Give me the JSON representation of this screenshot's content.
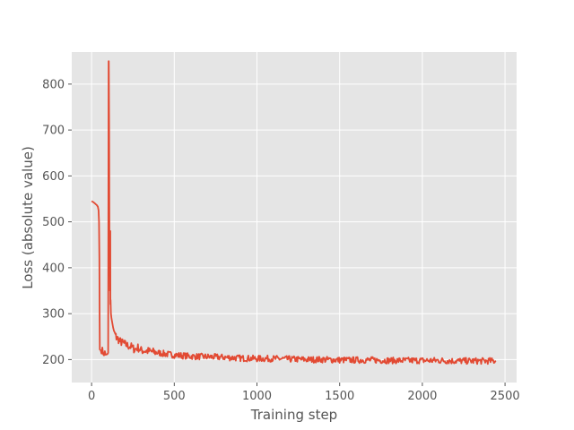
{
  "chart_data": {
    "type": "line",
    "title": "",
    "xlabel": "Training step",
    "ylabel": "Loss (absolute value)",
    "xlim": [
      -120,
      2570
    ],
    "ylim": [
      150,
      870
    ],
    "grid": true,
    "background": "#e5e5e5",
    "grid_color": "#ffffff",
    "line_color": "#e24a33",
    "x_ticks": [
      0,
      500,
      1000,
      1500,
      2000,
      2500
    ],
    "y_ticks": [
      200,
      300,
      400,
      500,
      600,
      700,
      800
    ],
    "series": [
      {
        "points": [
          [
            0,
            545
          ],
          [
            10,
            543
          ],
          [
            20,
            540
          ],
          [
            30,
            537
          ],
          [
            38,
            533
          ],
          [
            42,
            525
          ],
          [
            45,
            500
          ],
          [
            47,
            420
          ],
          [
            48,
            320
          ],
          [
            49,
            250
          ],
          [
            50,
            222
          ],
          [
            55,
            220
          ],
          [
            60,
            218
          ],
          [
            65,
            222
          ],
          [
            70,
            214
          ],
          [
            75,
            212
          ],
          [
            80,
            216
          ],
          [
            85,
            210
          ],
          [
            90,
            213
          ],
          [
            95,
            209
          ],
          [
            100,
            212
          ],
          [
            102,
            600
          ],
          [
            103,
            850
          ],
          [
            104,
            850
          ],
          [
            106,
            700
          ],
          [
            108,
            480
          ],
          [
            109,
            440
          ],
          [
            110,
            470
          ],
          [
            111,
            350
          ],
          [
            112,
            420
          ],
          [
            113,
            480
          ],
          [
            114,
            320
          ],
          [
            115,
            330
          ],
          [
            117,
            300
          ],
          [
            120,
            290
          ],
          [
            125,
            280
          ],
          [
            130,
            270
          ],
          [
            135,
            262
          ],
          [
            140,
            256
          ],
          [
            150,
            248
          ],
          [
            160,
            245
          ],
          [
            170,
            240
          ],
          [
            180,
            238
          ],
          [
            190,
            236
          ],
          [
            200,
            234
          ],
          [
            220,
            230
          ],
          [
            240,
            228
          ],
          [
            260,
            222
          ],
          [
            280,
            226
          ],
          [
            300,
            220
          ],
          [
            350,
            218
          ],
          [
            400,
            215
          ],
          [
            450,
            212
          ],
          [
            500,
            210
          ],
          [
            600,
            207
          ],
          [
            700,
            206
          ],
          [
            800,
            205
          ],
          [
            900,
            203
          ],
          [
            1000,
            202
          ],
          [
            1100,
            202
          ],
          [
            1200,
            201
          ],
          [
            1300,
            200
          ],
          [
            1400,
            200
          ],
          [
            1500,
            199
          ],
          [
            1600,
            199
          ],
          [
            1700,
            199
          ],
          [
            1800,
            198
          ],
          [
            1900,
            198
          ],
          [
            2000,
            198
          ],
          [
            2100,
            198
          ],
          [
            2200,
            197
          ],
          [
            2300,
            197
          ],
          [
            2400,
            197
          ],
          [
            2445,
            197
          ]
        ]
      }
    ]
  }
}
